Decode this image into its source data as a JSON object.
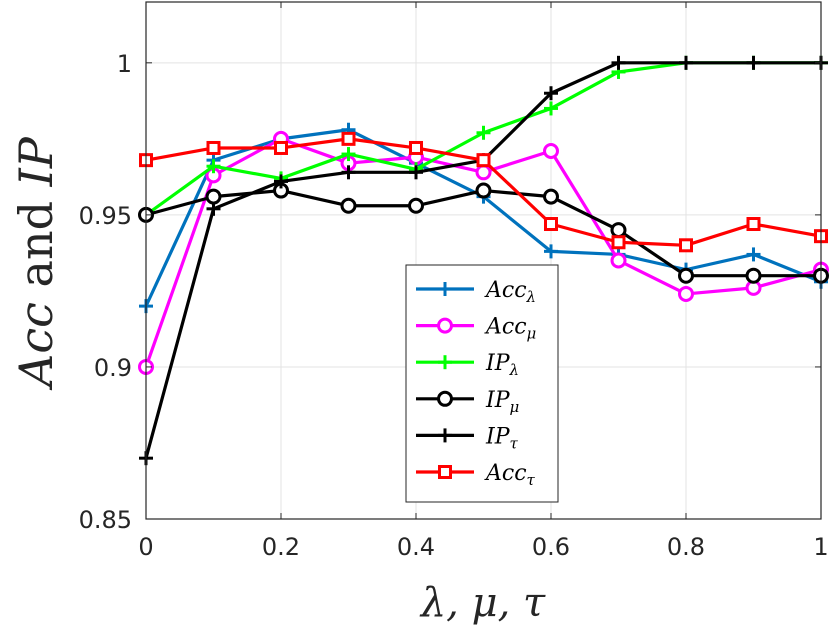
{
  "chart_data": {
    "type": "line",
    "xlabel": "λ, μ, τ",
    "ylabel": "Acc and IP",
    "xlim": [
      0,
      1
    ],
    "ylim": [
      0.85,
      1.02
    ],
    "grid": true,
    "legend_position": "center-bottom",
    "x": [
      0,
      0.1,
      0.2,
      0.3,
      0.4,
      0.5,
      0.6,
      0.7,
      0.8,
      0.9,
      1.0
    ],
    "x_ticks": [
      "0",
      "0.2",
      "0.4",
      "0.6",
      "0.8",
      "1"
    ],
    "y_ticks": [
      "0.85",
      "0.9",
      "0.95",
      "1"
    ],
    "series": [
      {
        "name": "Acc",
        "sub": "λ",
        "color": "#0072BD",
        "marker": "plus",
        "values": [
          0.92,
          0.968,
          0.975,
          0.978,
          0.967,
          0.956,
          0.938,
          0.937,
          0.932,
          0.937,
          0.928
        ]
      },
      {
        "name": "Acc",
        "sub": "μ",
        "color": "#FF00FF",
        "marker": "circle",
        "values": [
          0.9,
          0.963,
          0.975,
          0.967,
          0.969,
          0.964,
          0.971,
          0.935,
          0.924,
          0.926,
          0.932
        ]
      },
      {
        "name": "IP",
        "sub": "λ",
        "color": "#00FF00",
        "marker": "plus",
        "values": [
          0.95,
          0.966,
          0.962,
          0.97,
          0.965,
          0.977,
          0.985,
          0.997,
          1.0,
          1.0,
          1.0
        ]
      },
      {
        "name": "IP",
        "sub": "μ",
        "color": "#000000",
        "marker": "circle",
        "values": [
          0.95,
          0.956,
          0.958,
          0.953,
          0.953,
          0.958,
          0.956,
          0.945,
          0.93,
          0.93,
          0.93
        ]
      },
      {
        "name": "IP",
        "sub": "τ",
        "color": "#000000",
        "marker": "plus",
        "values": [
          0.87,
          0.952,
          0.961,
          0.964,
          0.964,
          0.968,
          0.99,
          1.0,
          1.0,
          1.0,
          1.0
        ]
      },
      {
        "name": "Acc",
        "sub": "τ",
        "color": "#FF0000",
        "marker": "square",
        "values": [
          0.968,
          0.972,
          0.972,
          0.975,
          0.972,
          0.968,
          0.947,
          0.941,
          0.94,
          0.947,
          0.943
        ]
      }
    ]
  }
}
